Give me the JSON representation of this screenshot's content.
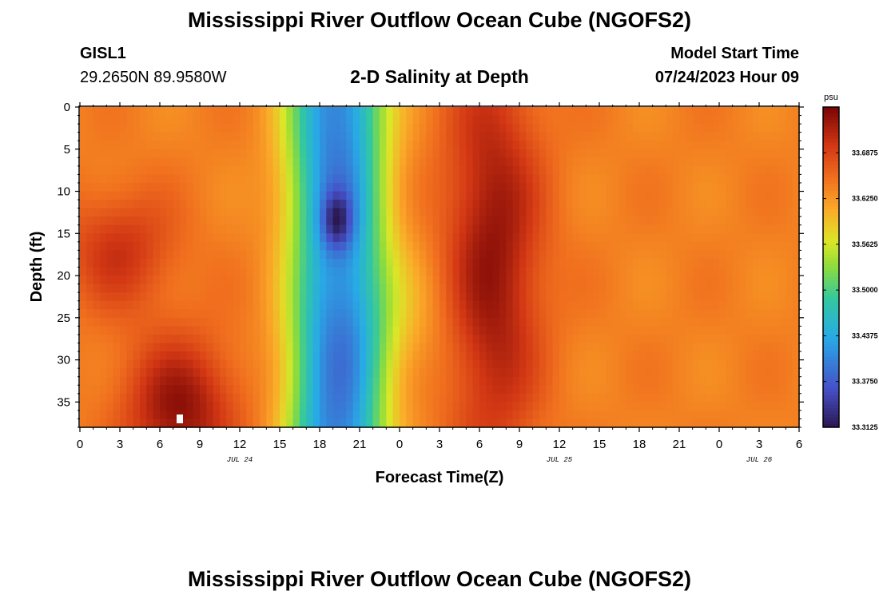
{
  "header": {
    "title": "Mississippi River Outflow Ocean Cube (NGOFS2)",
    "station_id": "GISL1",
    "station_coords": "29.2650N  89.9580W",
    "subtitle": "2-D Salinity at Depth",
    "start_label": "Model Start Time",
    "start_value": "07/24/2023 Hour 09"
  },
  "footer": {
    "title": "Mississippi River Outflow Ocean Cube (NGOFS2)"
  },
  "chart_data": {
    "type": "heatmap",
    "title": "2-D Salinity at Depth",
    "xlabel": "Forecast Time(Z)",
    "ylabel": "Depth (ft)",
    "xlim": [
      0,
      54
    ],
    "ylim": [
      38,
      0
    ],
    "x_tick_labels": [
      "0",
      "3",
      "6",
      "9",
      "12",
      "15",
      "18",
      "21",
      "0",
      "3",
      "6",
      "9",
      "12",
      "15",
      "18",
      "21",
      "0",
      "3",
      "6"
    ],
    "y_ticks": [
      0,
      5,
      10,
      15,
      20,
      25,
      30,
      35
    ],
    "date_labels": [
      {
        "label": "JUL 24",
        "x": 12
      },
      {
        "label": "JUL 25",
        "x": 36
      },
      {
        "label": "JUL 26",
        "x": 51
      }
    ],
    "colorbar": {
      "unit": "psu",
      "min": 33.3125,
      "max": 33.75,
      "ticks": [
        "33.6875",
        "33.6250",
        "33.5625",
        "33.5000",
        "33.4375",
        "33.3750",
        "33.3125"
      ],
      "tick_values": [
        33.6875,
        33.625,
        33.5625,
        33.5,
        33.4375,
        33.375,
        33.3125
      ]
    },
    "salinity_features": {
      "background": 33.64,
      "high_cores": [
        {
          "x": 7.5,
          "depth": 36,
          "value": 33.735
        },
        {
          "x": 31,
          "depth": 18,
          "value": 33.735
        },
        {
          "x": 3,
          "depth": 17,
          "value": 33.7
        }
      ],
      "low_band": {
        "x_center": 19.3,
        "width": 3.6,
        "value": 33.4
      },
      "low_core": {
        "x": 19.3,
        "depth": 13.5,
        "value": 33.31
      }
    }
  }
}
